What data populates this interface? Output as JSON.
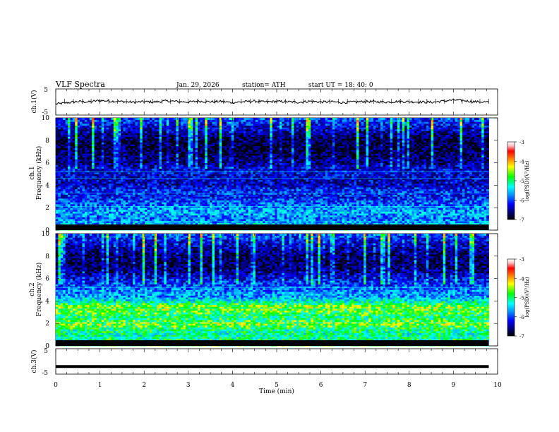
{
  "header": {
    "title": "VLF Spectra",
    "date": "Jan. 29, 2026",
    "station": "station= ATH",
    "start_ut": "start UT =  18: 40: 0"
  },
  "colors": {
    "background": "#ffffff",
    "axis": "#000000",
    "colormap": [
      "#000000",
      "#000080",
      "#0000ff",
      "#0096ff",
      "#00ffff",
      "#00ff00",
      "#ffff00",
      "#ff8000",
      "#ff0000",
      "#ffc0c0",
      "#ffffff"
    ]
  },
  "chart_data": [
    {
      "type": "line",
      "panel": "ch1-waveform",
      "ylabel": "ch.1(V)",
      "xlim": [
        0,
        10
      ],
      "ylim": [
        -5,
        5
      ],
      "yticks": [
        "5",
        "-5"
      ],
      "series": [
        {
          "x": [
            0.0,
            0.25,
            0.5,
            0.75,
            1.0,
            1.25,
            1.5,
            1.75,
            2.0,
            2.25,
            2.5,
            2.75,
            3.0,
            3.25,
            3.5,
            3.75,
            4.0,
            4.25,
            4.5,
            4.75,
            5.0,
            5.25,
            5.5,
            5.75,
            6.0,
            6.25,
            6.5,
            6.75,
            7.0,
            7.25,
            7.5,
            7.75,
            8.0,
            8.25,
            8.5,
            8.75,
            9.0,
            9.25,
            9.5,
            9.8
          ],
          "y": [
            -0.8,
            -0.3,
            0.2,
            0.0,
            0.6,
            0.3,
            0.2,
            -0.1,
            0.1,
            0.0,
            0.4,
            0.2,
            0.0,
            0.3,
            0.1,
            0.2,
            -0.2,
            0.1,
            0.3,
            0.0,
            0.2,
            0.1,
            -0.1,
            0.3,
            0.0,
            0.1,
            -0.2,
            0.0,
            0.2,
            0.1,
            0.0,
            0.2,
            0.1,
            0.0,
            -0.1,
            0.3,
            0.8,
            0.5,
            0.1,
            0.0
          ]
        }
      ]
    },
    {
      "type": "heatmap",
      "panel": "ch1-spectrogram",
      "ylabel_line1": "ch.1",
      "ylabel_line2": "Frequency (kHz)",
      "xlim": [
        0,
        9.8
      ],
      "ylim": [
        0,
        10
      ],
      "yticks": [
        "0",
        "2",
        "4",
        "6",
        "8",
        "10"
      ],
      "colorbar": {
        "label": "log(PSD)(V²/Hz)",
        "range": [
          -7,
          -3
        ],
        "ticks": [
          "-3",
          "-4",
          "-5",
          "-6",
          "-7"
        ]
      },
      "mean_level_by_frequency_khz": {
        "freq": [
          0,
          0.5,
          1,
          1.5,
          2,
          2.5,
          3,
          3.5,
          4,
          4.5,
          5,
          5.5,
          6,
          7,
          8,
          9,
          10
        ],
        "level": [
          -5.3,
          -5.6,
          -5.9,
          -5.7,
          -5.8,
          -6.0,
          -6.2,
          -6.1,
          -6.4,
          -6.4,
          -6.3,
          -6.3,
          -6.6,
          -6.8,
          -6.8,
          -6.4,
          -6.0
        ]
      }
    },
    {
      "type": "heatmap",
      "panel": "ch2-spectrogram",
      "ylabel_line1": "ch.2",
      "ylabel_line2": "Frequency (kHz)",
      "xlim": [
        0,
        9.8
      ],
      "ylim": [
        0,
        10
      ],
      "yticks": [
        "0",
        "2",
        "4",
        "6",
        "8",
        "10"
      ],
      "colorbar": {
        "label": "log(PSD)(V²/Hz)",
        "range": [
          -7,
          -3
        ],
        "ticks": [
          "-3",
          "-4",
          "-5",
          "-6",
          "-7"
        ]
      },
      "mean_level_by_frequency_khz": {
        "freq": [
          0,
          0.5,
          1,
          1.5,
          2,
          2.5,
          3,
          3.5,
          4,
          4.5,
          5,
          5.5,
          6,
          7,
          8,
          9,
          10
        ],
        "level": [
          -5.0,
          -5.2,
          -5.3,
          -5.2,
          -4.8,
          -5.2,
          -5.0,
          -4.8,
          -5.4,
          -5.8,
          -5.8,
          -6.1,
          -6.3,
          -6.7,
          -6.7,
          -6.4,
          -6.0
        ]
      }
    },
    {
      "type": "line",
      "panel": "ch3-waveform",
      "ylabel": "ch.3(V)",
      "xlabel": "Time (min)",
      "xlim": [
        0,
        10
      ],
      "ylim": [
        -5,
        5
      ],
      "xticks": [
        "0",
        "1",
        "2",
        "3",
        "4",
        "5",
        "6",
        "7",
        "8",
        "9",
        "10"
      ],
      "yticks": [
        "5",
        "-5"
      ],
      "series": [
        {
          "x": [
            0.0,
            9.8
          ],
          "y": [
            -2.0,
            -2.0
          ]
        }
      ]
    }
  ]
}
